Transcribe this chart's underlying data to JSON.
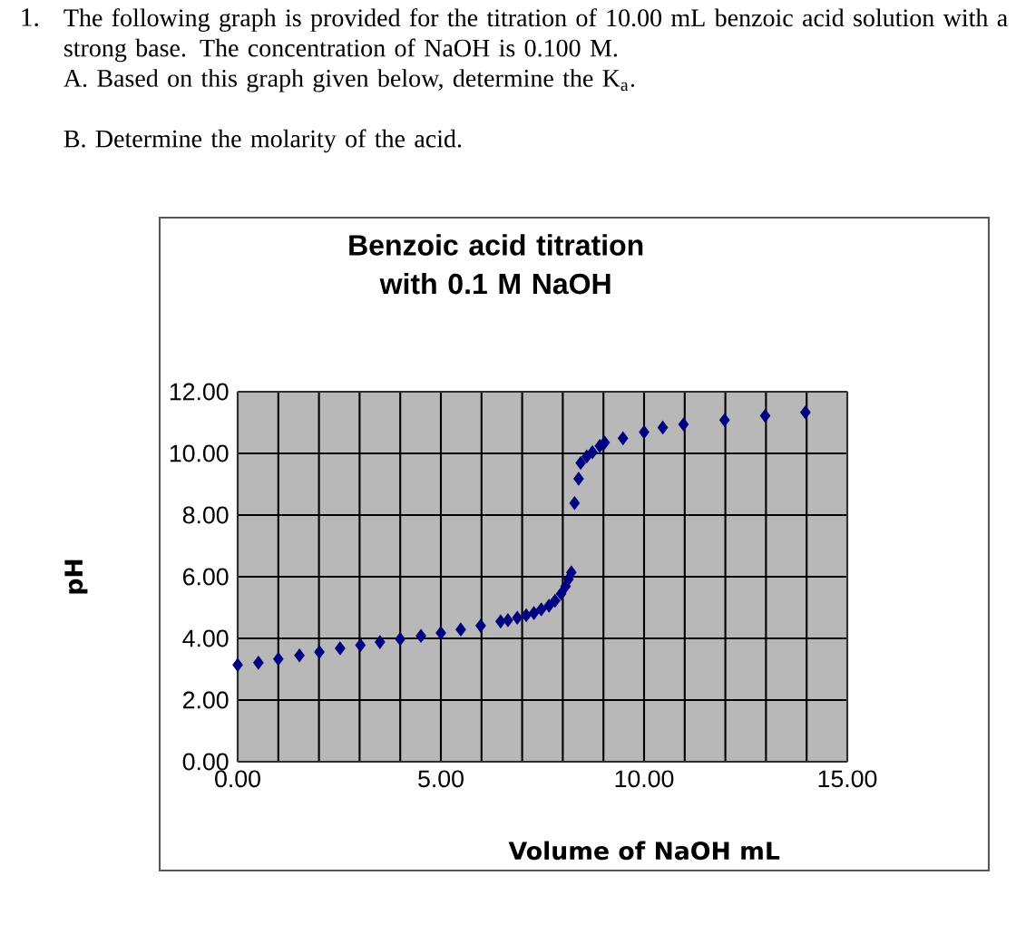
{
  "chart_data": {
    "type": "scatter",
    "title": "Benzoic acid titration with 0.1 M NaOH",
    "xlabel": "Volume of NaOH mL",
    "ylabel": "pH",
    "annotations": [
      "1.",
      "The following graph is provided for the titration of 10.00 mL benzoic acid solution with a strong base. The concentration of NaOH is 0.100 M.",
      "A. Based on this graph given below, determine the K$_{a}$.",
      "B. Determine the molarity of the acid."
    ],
    "x": [
      0,
      0.51,
      1.0,
      1.52,
      2.01,
      2.52,
      3.02,
      3.5,
      4.0,
      4.51,
      5.0,
      5.49,
      5.98,
      6.47,
      6.65,
      6.88,
      7.1,
      7.29,
      7.47,
      7.66,
      7.81,
      7.96,
      8.07,
      8.14,
      8.21,
      8.29,
      8.39,
      8.44,
      8.59,
      8.73,
      8.91,
      9.03,
      9.48,
      10.0,
      10.46,
      10.97,
      11.98,
      12.98,
      13.97
    ],
    "values": [
      3.14,
      3.21,
      3.33,
      3.45,
      3.56,
      3.68,
      3.78,
      3.88,
      3.98,
      4.08,
      4.18,
      4.29,
      4.41,
      4.55,
      4.59,
      4.67,
      4.75,
      4.82,
      4.94,
      5.06,
      5.22,
      5.45,
      5.69,
      5.92,
      6.14,
      8.39,
      9.18,
      9.69,
      9.9,
      10.04,
      10.24,
      10.35,
      10.49,
      10.69,
      10.84,
      10.94,
      11.08,
      11.22,
      11.33
    ],
    "color": "#000080",
    "marker": "diamond",
    "grid": true,
    "xlim": [
      0,
      15
    ],
    "ylim": [
      0,
      12
    ],
    "xticks": [
      {
        "value": 0,
        "label": "0.00"
      },
      {
        "value": 5,
        "label": "5.00"
      },
      {
        "value": 10,
        "label": "10.00"
      },
      {
        "value": 15,
        "label": "15.00"
      }
    ],
    "yticks": [
      {
        "value": 0,
        "label": "0.00"
      },
      {
        "value": 2,
        "label": "2.00"
      },
      {
        "value": 4,
        "label": "4.00"
      },
      {
        "value": 6,
        "label": "6.00"
      },
      {
        "value": 8,
        "label": "8.00"
      },
      {
        "value": 10,
        "label": "10.00"
      },
      {
        "value": 12,
        "label": "12.00"
      }
    ]
  }
}
